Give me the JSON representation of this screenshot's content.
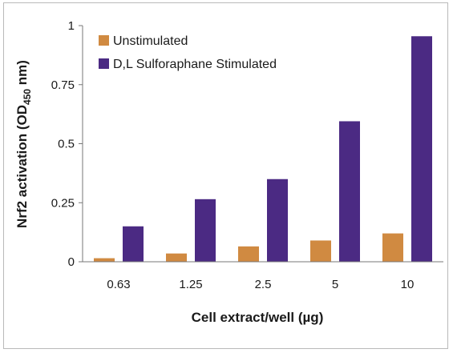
{
  "chart_data": {
    "type": "bar",
    "categories": [
      "0.63",
      "1.25",
      "2.5",
      "5",
      "10"
    ],
    "series": [
      {
        "name": "Unstimulated",
        "values": [
          0.015,
          0.035,
          0.065,
          0.09,
          0.12
        ]
      },
      {
        "name": "D,L Sulforaphane Stimulated",
        "values": [
          0.15,
          0.265,
          0.35,
          0.595,
          0.955
        ]
      }
    ],
    "xlabel": "Cell extract/well (µg)",
    "ylabel": {
      "prefix": "Nrf2 activation (OD",
      "subscript": "450",
      "suffix": " nm)"
    },
    "ylim": [
      0,
      1
    ],
    "yticks": [
      "0",
      "0.25",
      "0.5",
      "0.75",
      "1"
    ],
    "grid": false,
    "legend_position": "top-left",
    "colors": [
      "#d08a41",
      "#4b2a83"
    ]
  }
}
